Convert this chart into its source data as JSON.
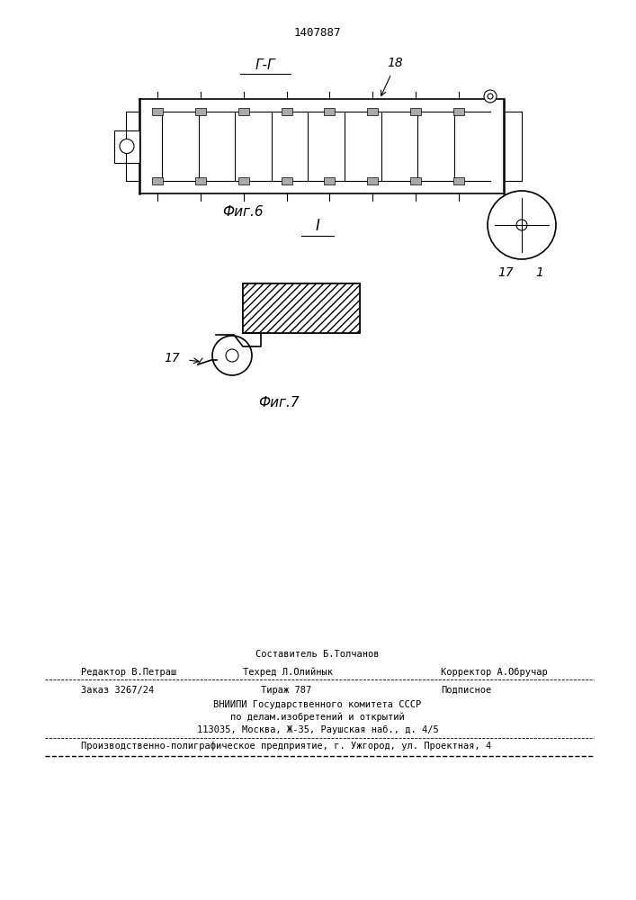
{
  "patent_number": "1407887",
  "fig6_label": "Фиг.6",
  "fig7_label": "Фиг.7",
  "section_label_fig6": "Г-Г",
  "section_label_fig7": "І",
  "label_18": "18",
  "label_17": "17",
  "label_1": "1",
  "label_17b": "17",
  "editor_line": "Редактор В.Петраш",
  "compiler_line1": "Составитель Б.Толчанов",
  "techred_line": "Техред Л.Олийнык",
  "corrector_line": "Корректор А.Обручар",
  "order_line": "Заказ 3267/24",
  "tirazh_line": "Тираж 787",
  "podpisnoe_line": "Подписное",
  "vniip_line1": "ВНИИПИ Государственного комитета СССР",
  "vniip_line2": "по делам.изобретений и открытий",
  "vniip_line3": "113035, Москва, Ж-35, Раушская наб., д. 4/5",
  "factory_line": "Производственно-полиграфическое предприятие, г. Ужгород, ул. Проектная, 4",
  "bg_color": "#ffffff",
  "line_color": "#000000",
  "hatch_color": "#555555"
}
